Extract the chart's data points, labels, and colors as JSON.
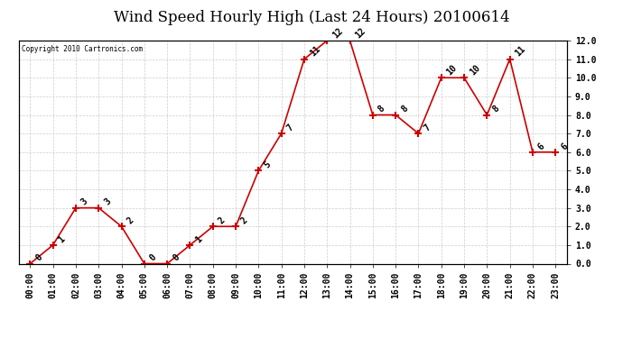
{
  "title": "Wind Speed Hourly High (Last 24 Hours) 20100614",
  "copyright_text": "Copyright 2010 Cartronics.com",
  "hours": [
    "00:00",
    "01:00",
    "02:00",
    "03:00",
    "04:00",
    "05:00",
    "06:00",
    "07:00",
    "08:00",
    "09:00",
    "10:00",
    "11:00",
    "12:00",
    "13:00",
    "14:00",
    "15:00",
    "16:00",
    "17:00",
    "18:00",
    "19:00",
    "20:00",
    "21:00",
    "22:00",
    "23:00"
  ],
  "values": [
    0,
    1,
    3,
    3,
    2,
    0,
    0,
    1,
    2,
    2,
    5,
    7,
    11,
    12,
    12,
    8,
    8,
    7,
    10,
    10,
    8,
    11,
    6,
    6
  ],
  "line_color": "#cc0000",
  "marker_color": "#cc0000",
  "bg_color": "#ffffff",
  "grid_color": "#cccccc",
  "ylim": [
    0.0,
    12.0
  ],
  "yticks": [
    0.0,
    1.0,
    2.0,
    3.0,
    4.0,
    5.0,
    6.0,
    7.0,
    8.0,
    9.0,
    10.0,
    11.0,
    12.0
  ],
  "title_fontsize": 12,
  "label_fontsize": 7,
  "annotation_fontsize": 7
}
